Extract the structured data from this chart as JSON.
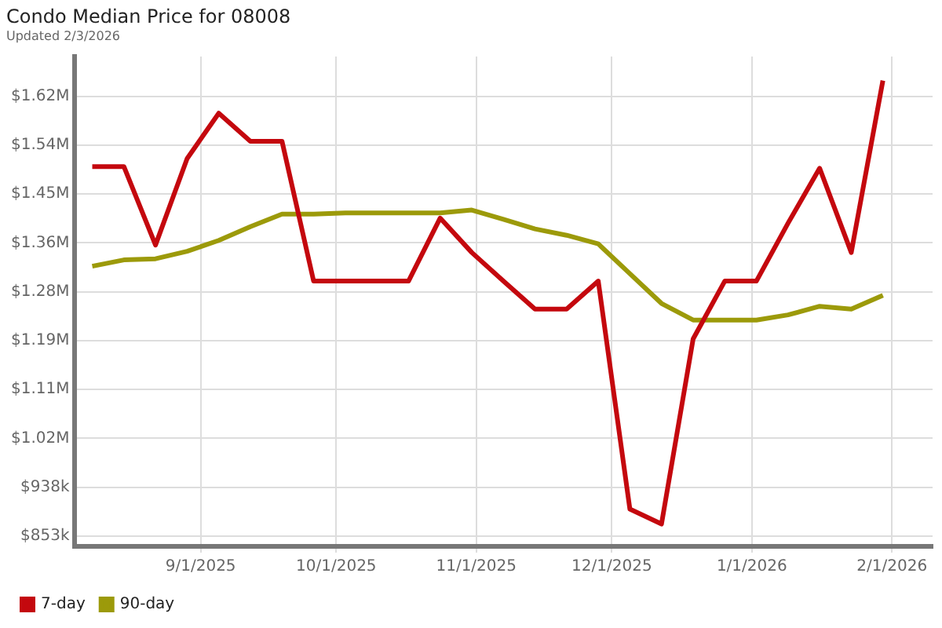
{
  "chart_data": {
    "type": "line",
    "title": "Condo Median Price for 08008",
    "subtitle": "Updated 2/3/2026",
    "x": [
      "2025-08-08",
      "2025-08-15",
      "2025-08-22",
      "2025-08-29",
      "2025-09-05",
      "2025-09-12",
      "2025-09-19",
      "2025-09-26",
      "2025-10-03",
      "2025-10-10",
      "2025-10-17",
      "2025-10-24",
      "2025-10-31",
      "2025-11-07",
      "2025-11-14",
      "2025-11-21",
      "2025-11-28",
      "2025-12-05",
      "2025-12-12",
      "2025-12-19",
      "2025-12-26",
      "2026-01-02",
      "2026-01-09",
      "2026-01-16",
      "2026-01-23",
      "2026-01-30"
    ],
    "series": [
      {
        "name": "7-day",
        "color": "#c4080e",
        "values": [
          1498000,
          1498000,
          1361000,
          1512000,
          1591000,
          1542000,
          1542000,
          1298000,
          1298000,
          1298000,
          1298000,
          1408000,
          1348000,
          1298000,
          1249000,
          1249000,
          1298000,
          900000,
          874000,
          1197000,
          1298000,
          1298000,
          1399000,
          1495000,
          1348000,
          1648000
        ]
      },
      {
        "name": "90-day",
        "color": "#9c9a0a",
        "values": [
          1324000,
          1335000,
          1337000,
          1350000,
          1369000,
          1393000,
          1415000,
          1415000,
          1417000,
          1417000,
          1417000,
          1417000,
          1422000,
          1406000,
          1389000,
          1378000,
          1363000,
          1311000,
          1259000,
          1230000,
          1230000,
          1230000,
          1239000,
          1254000,
          1249000,
          1273000
        ]
      }
    ],
    "xlim": [
      "2025-08-04",
      "2026-02-10"
    ],
    "xticks": [
      {
        "value": "2025-09-01",
        "label": "9/1/2025"
      },
      {
        "value": "2025-10-01",
        "label": "10/1/2025"
      },
      {
        "value": "2025-11-01",
        "label": "11/1/2025"
      },
      {
        "value": "2025-12-01",
        "label": "12/1/2025"
      },
      {
        "value": "2026-01-01",
        "label": "1/1/2026"
      },
      {
        "value": "2026-02-01",
        "label": "2/1/2026"
      }
    ],
    "ylim": [
      835000,
      1690000
    ],
    "yticks": [
      {
        "value": 853000,
        "label": "$853k"
      },
      {
        "value": 938300,
        "label": "$938k"
      },
      {
        "value": 1023600,
        "label": "$1.02M"
      },
      {
        "value": 1108900,
        "label": "$1.11M"
      },
      {
        "value": 1194200,
        "label": "$1.19M"
      },
      {
        "value": 1279500,
        "label": "$1.28M"
      },
      {
        "value": 1364800,
        "label": "$1.36M"
      },
      {
        "value": 1450100,
        "label": "$1.45M"
      },
      {
        "value": 1535400,
        "label": "$1.54M"
      },
      {
        "value": 1620700,
        "label": "$1.62M"
      }
    ],
    "grid": true,
    "legend": "bottom left",
    "marker": "none",
    "line_style": "solid"
  }
}
